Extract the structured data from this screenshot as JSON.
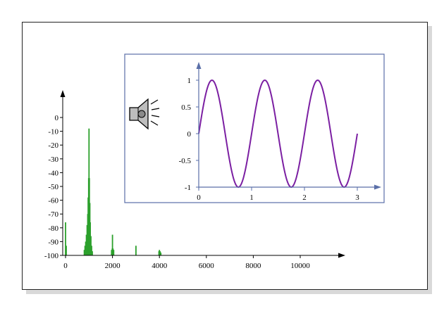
{
  "chart_data": [
    {
      "type": "bar",
      "title": "",
      "xlabel": "",
      "ylabel": "",
      "xlim": [
        0,
        11500
      ],
      "ylim": [
        -100,
        0
      ],
      "x_ticks": [
        0,
        2000,
        4000,
        6000,
        8000,
        10000
      ],
      "y_ticks": [
        0,
        -10,
        -20,
        -30,
        -40,
        -50,
        -60,
        -70,
        -80,
        -90,
        -100
      ],
      "grid": false,
      "color": "#2ca02c",
      "spectrum": [
        {
          "x": 0,
          "y": -76
        },
        {
          "x": 30,
          "y": -93
        },
        {
          "x": 800,
          "y": -96
        },
        {
          "x": 830,
          "y": -93
        },
        {
          "x": 860,
          "y": -90
        },
        {
          "x": 890,
          "y": -85
        },
        {
          "x": 920,
          "y": -78
        },
        {
          "x": 945,
          "y": -70
        },
        {
          "x": 965,
          "y": -58
        },
        {
          "x": 985,
          "y": -44
        },
        {
          "x": 1000,
          "y": -8
        },
        {
          "x": 1015,
          "y": -44
        },
        {
          "x": 1035,
          "y": -62
        },
        {
          "x": 1055,
          "y": -76
        },
        {
          "x": 1080,
          "y": -86
        },
        {
          "x": 1110,
          "y": -93
        },
        {
          "x": 1140,
          "y": -97
        },
        {
          "x": 1960,
          "y": -96
        },
        {
          "x": 1990,
          "y": -95
        },
        {
          "x": 2000,
          "y": -85
        },
        {
          "x": 2020,
          "y": -95
        },
        {
          "x": 2050,
          "y": -96
        },
        {
          "x": 3000,
          "y": -93
        },
        {
          "x": 3980,
          "y": -97
        },
        {
          "x": 4000,
          "y": -96
        },
        {
          "x": 4030,
          "y": -97
        },
        {
          "x": 4060,
          "y": -98
        }
      ]
    },
    {
      "type": "line",
      "title": "",
      "xlabel": "",
      "ylabel": "",
      "xlim": [
        0,
        3.5
      ],
      "ylim": [
        -1,
        1.1
      ],
      "x_ticks": [
        0,
        1,
        2,
        3
      ],
      "y_ticks": [
        1,
        0.5,
        0,
        -0.5,
        -1
      ],
      "grid": false,
      "color": "#7b1fa2",
      "series": [
        {
          "function": "sin(2*pi*t)",
          "t_range": [
            0,
            3
          ],
          "samples": 301
        }
      ]
    }
  ],
  "icons": {
    "speaker": "speaker-icon"
  },
  "colors": {
    "inset_frame": "#5a6fa8",
    "axis_blue": "#5a6fa8"
  }
}
